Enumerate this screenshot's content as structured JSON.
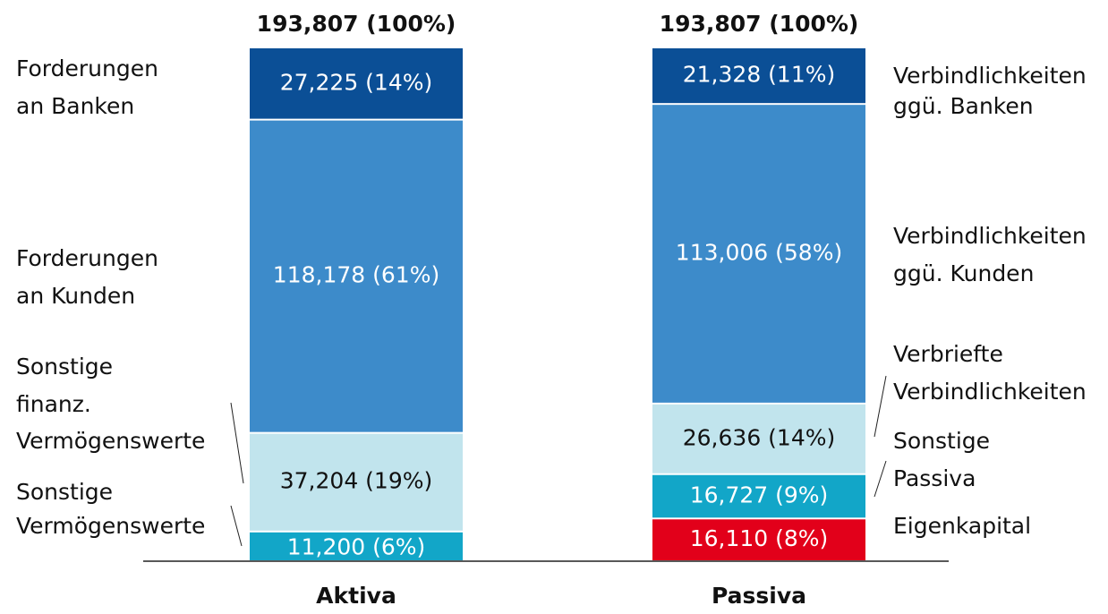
{
  "chart_data": {
    "type": "stacked_bar",
    "categories": [
      "Aktiva",
      "Passiva"
    ],
    "totals": [
      193807,
      193807
    ],
    "total_labels": [
      "193,807 (100%)",
      "193,807 (100%)"
    ],
    "stacks": [
      {
        "segments": [
          {
            "name": [
              "Sonstige",
              "Vermögenswerte"
            ],
            "value": 11200,
            "value_label": "11,200 (6%)",
            "color": "#12a6c8"
          },
          {
            "name": [
              "Sonstige",
              "finanz.",
              "Vermögenswerte"
            ],
            "value": 37204,
            "value_label": "37,204 (19%)",
            "color": "#c1e4ed"
          },
          {
            "name": [
              "Forderungen",
              "an Kunden"
            ],
            "value": 118178,
            "value_label": "118,178 (61%)",
            "color": "#3d8bca"
          },
          {
            "name": [
              "Forderungen",
              "an Banken"
            ],
            "value": 27225,
            "value_label": "27,225 (14%)",
            "color": "#0b4f96"
          }
        ]
      },
      {
        "segments": [
          {
            "name": [
              "Eigenkapital"
            ],
            "value": 16110,
            "value_label": "16,110 (8%)",
            "color": "#e2001a"
          },
          {
            "name": [
              "Sonstige",
              "Passiva"
            ],
            "value": 16727,
            "value_label": "16,727 (9%)",
            "color": "#12a6c8"
          },
          {
            "name": [
              "Verbriefte",
              "Verbindlichkeiten"
            ],
            "value": 26636,
            "value_label": "26,636 (14%)",
            "color": "#c1e4ed"
          },
          {
            "name": [
              "Verbindlichkeiten",
              "ggü. Kunden"
            ],
            "value": 113006,
            "value_label": "113,006 (58%)",
            "color": "#3d8bca"
          },
          {
            "name": [
              "Verbindlichkeiten",
              "ggü. Banken"
            ],
            "value": 21328,
            "value_label": "21,328 (11%)",
            "color": "#0b4f96"
          }
        ]
      }
    ]
  }
}
